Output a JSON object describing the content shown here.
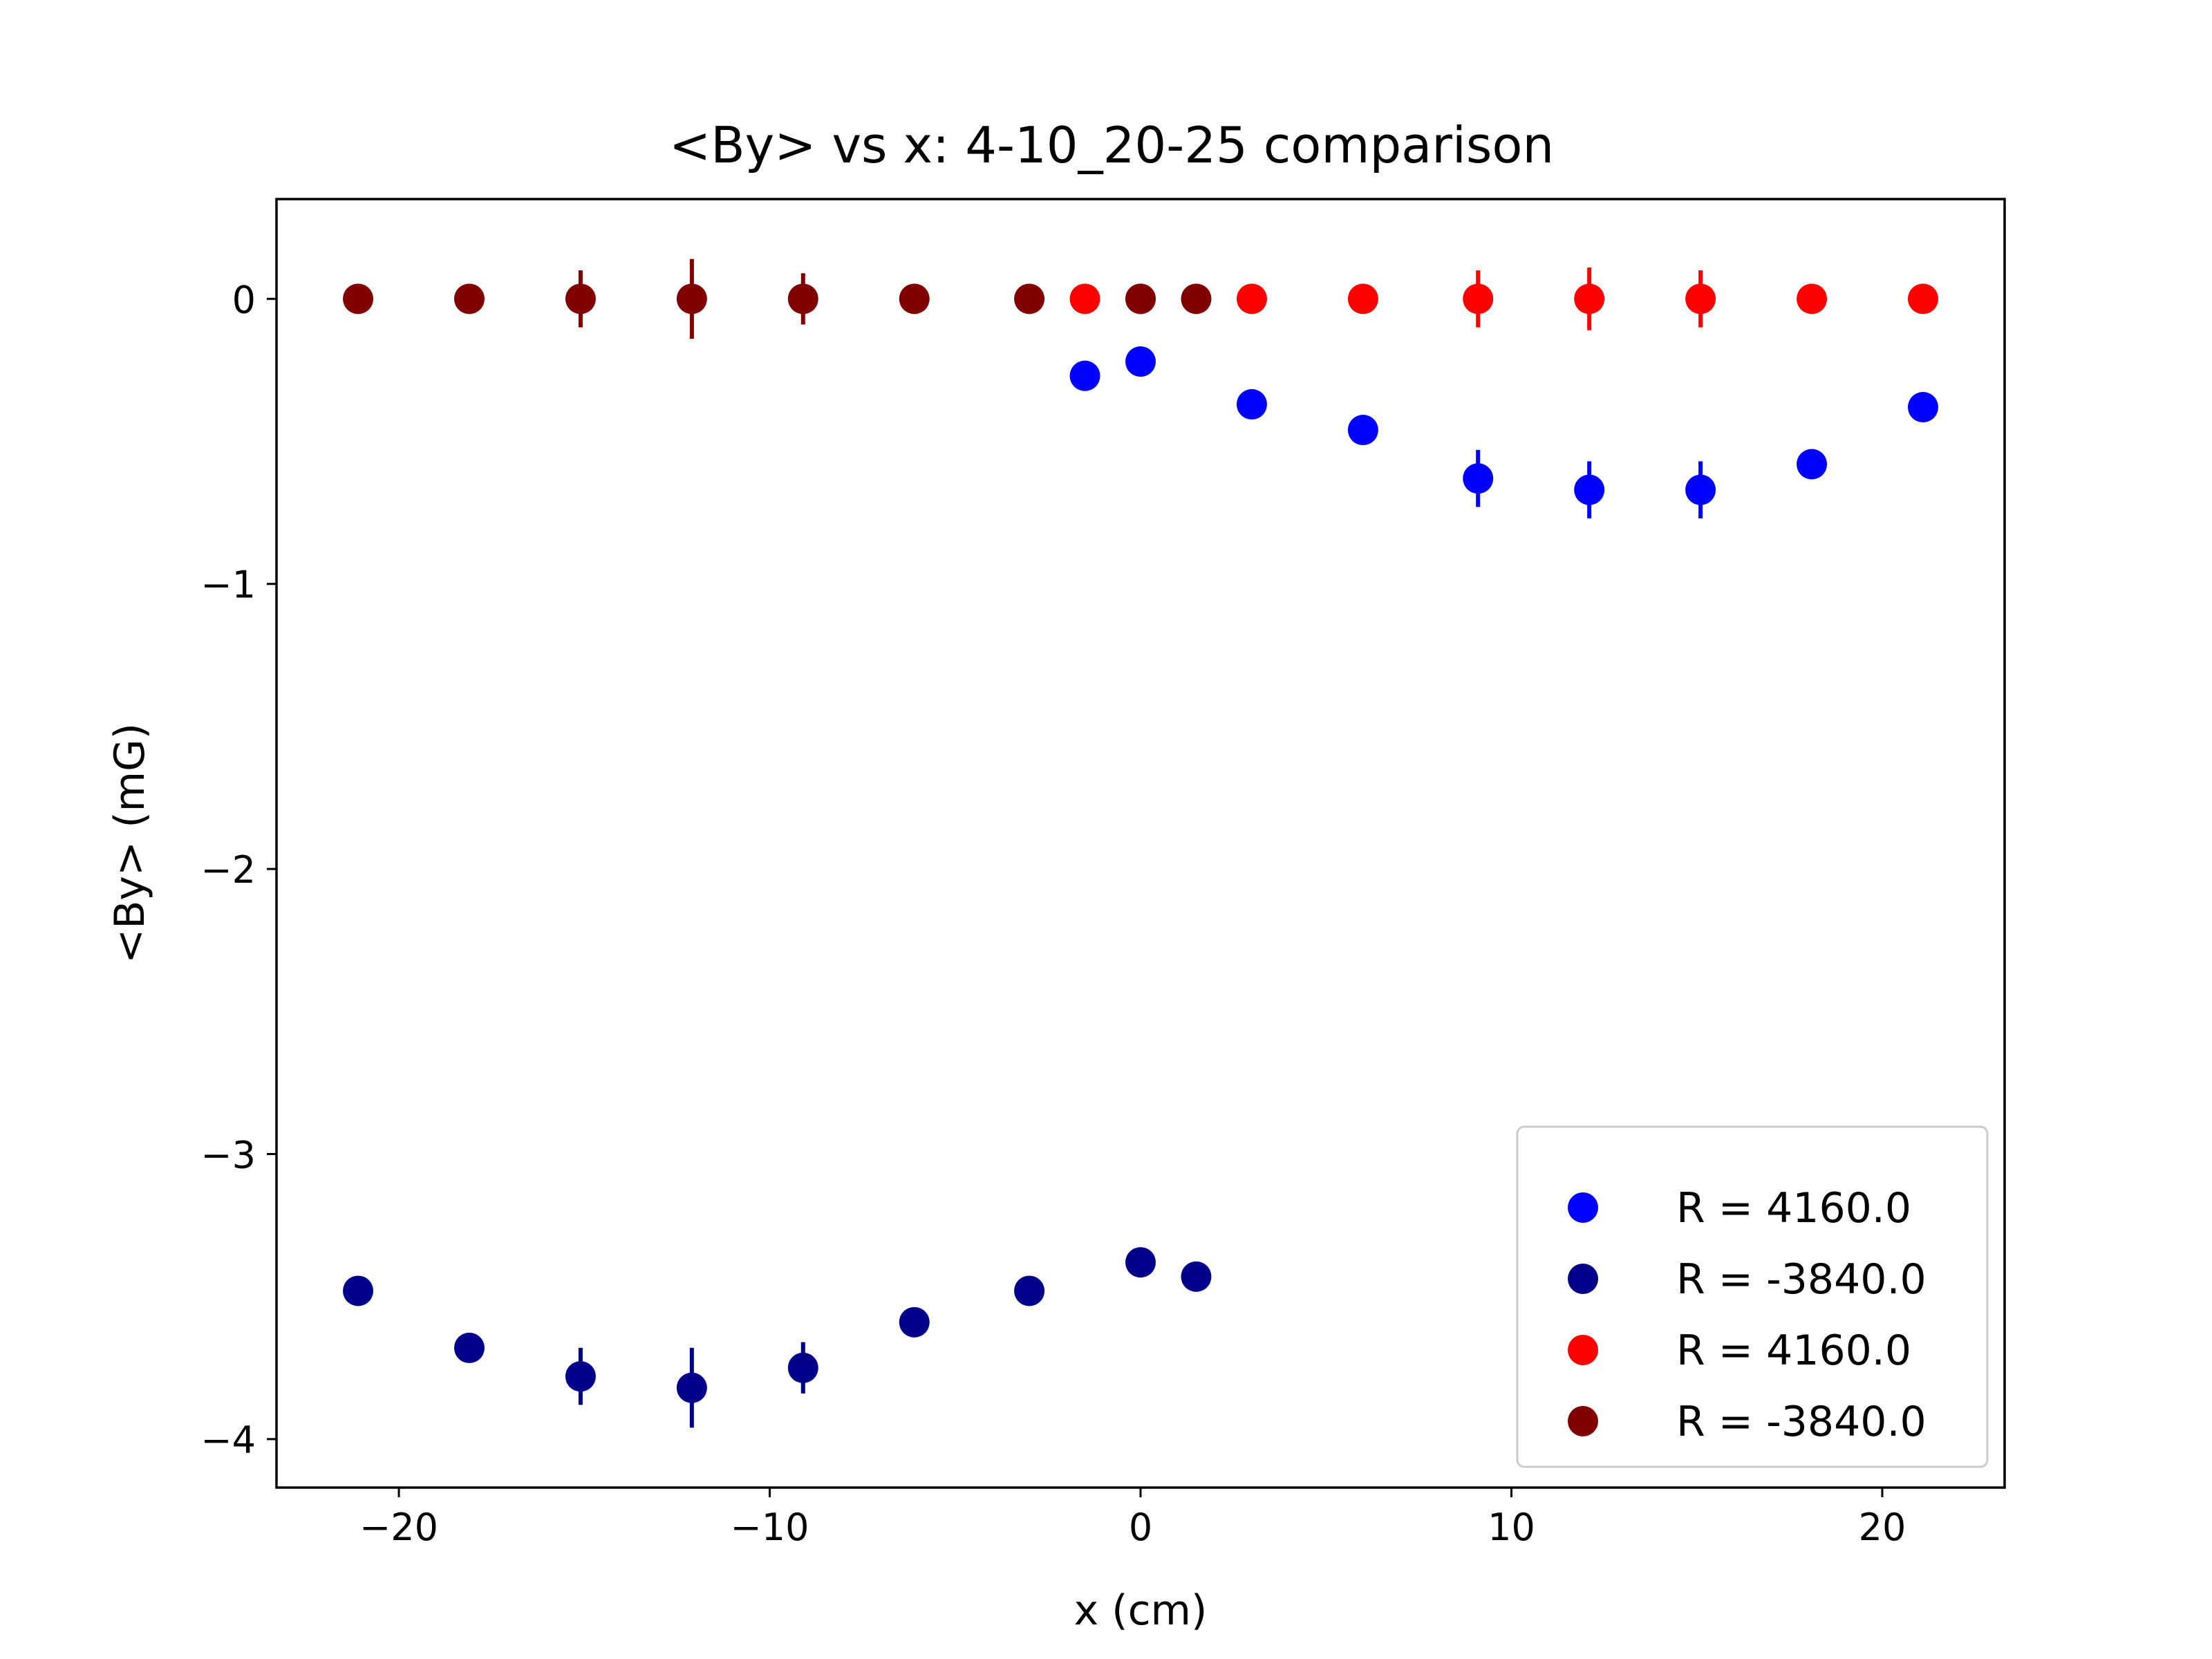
{
  "chart_data": {
    "type": "scatter",
    "title": "<By> vs x: 4-10_20-25 comparison",
    "xlabel": "x (cm)",
    "ylabel": "<By> (mG)",
    "xlim": [
      -23.3,
      23.3
    ],
    "ylim": [
      -4.17,
      0.35
    ],
    "xticks": [
      -20,
      -10,
      0,
      10,
      20
    ],
    "xtick_labels": [
      "−20",
      "−10",
      "0",
      "10",
      "20"
    ],
    "yticks": [
      0,
      -1,
      -2,
      -3,
      -4
    ],
    "ytick_labels": [
      "0",
      "−1",
      "−2",
      "−3",
      "−4"
    ],
    "grid": false,
    "legend_position": "lower right",
    "series": [
      {
        "name": "R = 4160.0",
        "color": "#0000ff",
        "x": [
          -1.5,
          0.0,
          3.0,
          6.0,
          9.1,
          12.1,
          15.1,
          18.1,
          21.1
        ],
        "y": [
          -0.27,
          -0.22,
          -0.37,
          -0.46,
          -0.63,
          -0.67,
          -0.67,
          -0.58,
          -0.38
        ],
        "yerr": [
          0.03,
          0.03,
          0.03,
          0.03,
          0.1,
          0.1,
          0.1,
          0.05,
          0.03
        ]
      },
      {
        "name": "R = -3840.0",
        "color": "#00008b",
        "x": [
          -21.1,
          -18.1,
          -15.1,
          -12.1,
          -9.1,
          -6.1,
          -3.0,
          0.0,
          1.5
        ],
        "y": [
          -3.48,
          -3.68,
          -3.78,
          -3.82,
          -3.75,
          -3.59,
          -3.48,
          -3.38,
          -3.43
        ],
        "yerr": [
          0.03,
          0.03,
          0.1,
          0.14,
          0.09,
          0.03,
          0.03,
          0.03,
          0.03
        ]
      },
      {
        "name": "R = 4160.0",
        "color": "#ff0000",
        "x": [
          -1.5,
          0.0,
          3.0,
          6.0,
          9.1,
          12.1,
          15.1,
          18.1,
          21.1
        ],
        "y": [
          0,
          0,
          0,
          0,
          0,
          0,
          0,
          0,
          0
        ],
        "yerr": [
          0.03,
          0.03,
          0.03,
          0.03,
          0.1,
          0.11,
          0.1,
          0.05,
          0.03
        ]
      },
      {
        "name": "R = -3840.0",
        "color": "#800000",
        "x": [
          -21.1,
          -18.1,
          -15.1,
          -12.1,
          -9.1,
          -6.1,
          -3.0,
          0.0,
          1.5
        ],
        "y": [
          0,
          0,
          0,
          0,
          0,
          0,
          0,
          0,
          0
        ],
        "yerr": [
          0.03,
          0.03,
          0.1,
          0.14,
          0.09,
          0.03,
          0.03,
          0.03,
          0.03
        ]
      }
    ]
  }
}
